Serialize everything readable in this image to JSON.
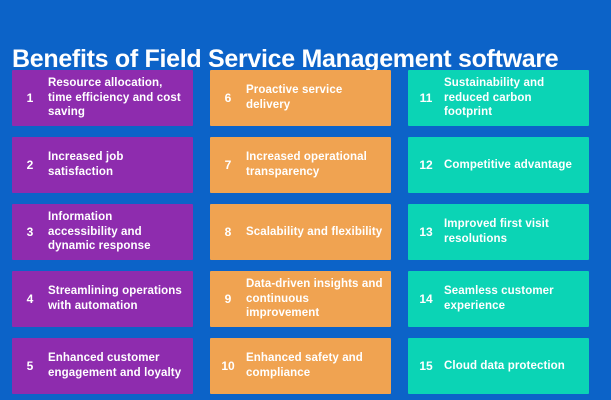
{
  "title": "Benefits of Field Service Management software",
  "colors": {
    "background": "#0c63c8",
    "purple": "#8e2cae",
    "orange": "#f0a351",
    "teal": "#0bd4b5",
    "text": "#ffffff"
  },
  "columns": [
    {
      "color_key": "purple",
      "cards": [
        {
          "number": "1",
          "text": "Resource allocation, time efficiency and cost saving"
        },
        {
          "number": "2",
          "text": "Increased job satisfaction"
        },
        {
          "number": "3",
          "text": "Information accessibility and dynamic response"
        },
        {
          "number": "4",
          "text": "Streamlining operations with automation"
        },
        {
          "number": "5",
          "text": "Enhanced customer engagement and loyalty"
        }
      ]
    },
    {
      "color_key": "orange",
      "cards": [
        {
          "number": "6",
          "text": "Proactive service delivery"
        },
        {
          "number": "7",
          "text": "Increased operational transparency"
        },
        {
          "number": "8",
          "text": "Scalability and flexibility"
        },
        {
          "number": "9",
          "text": "Data-driven insights and continuous improvement"
        },
        {
          "number": "10",
          "text": "Enhanced safety and compliance"
        }
      ]
    },
    {
      "color_key": "teal",
      "cards": [
        {
          "number": "11",
          "text": "Sustainability and reduced carbon footprint"
        },
        {
          "number": "12",
          "text": "Competitive advantage"
        },
        {
          "number": "13",
          "text": "Improved first visit resolutions"
        },
        {
          "number": "14",
          "text": "Seamless customer experience"
        },
        {
          "number": "15",
          "text": "Cloud data protection"
        }
      ]
    }
  ]
}
